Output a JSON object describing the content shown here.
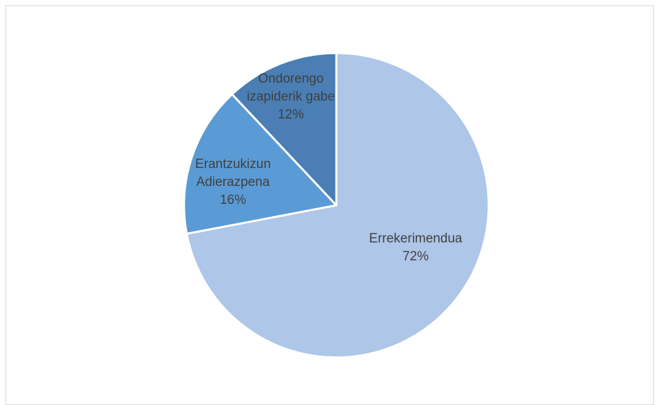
{
  "chart_data": {
    "type": "pie",
    "title": "",
    "slices": [
      {
        "label_lines": [
          "Errekerimendua"
        ],
        "value": 72,
        "percent_label": "72%",
        "color": "#aec6e8"
      },
      {
        "label_lines": [
          "Erantzukizun",
          "Adierazpena"
        ],
        "value": 16,
        "percent_label": "16%",
        "color": "#5b9bd5"
      },
      {
        "label_lines": [
          "Ondorengo",
          "izapiderik gabe"
        ],
        "value": 12,
        "percent_label": "12%",
        "color": "#4a7eb5"
      }
    ],
    "start_angle_deg": 0,
    "direction": "clockwise",
    "legend": "none",
    "border_color": "#d9d9d9",
    "separator_color": "#ffffff"
  }
}
